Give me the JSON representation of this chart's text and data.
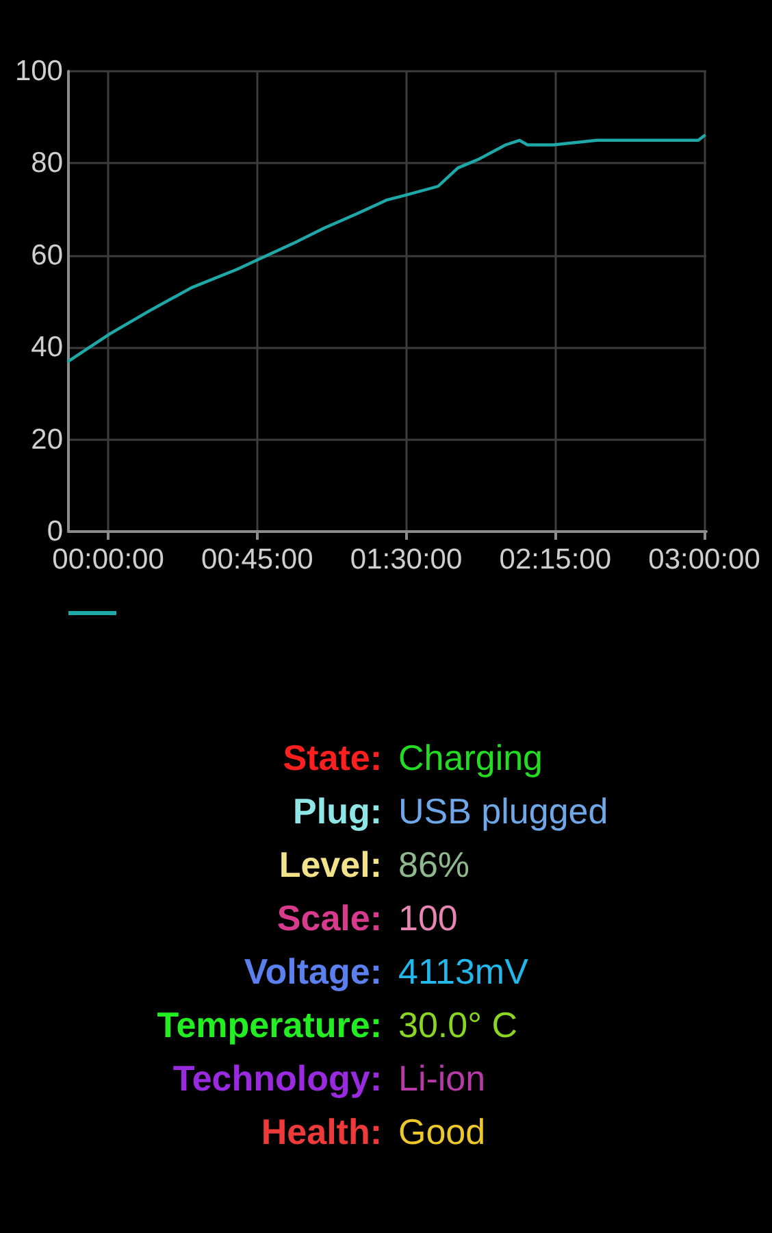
{
  "chart_data": [
    {
      "type": "line",
      "x": [
        -0.2,
        0.01,
        0.21,
        0.42,
        0.65,
        0.75,
        0.95,
        1.09,
        1.25,
        1.4,
        1.49,
        1.66,
        1.76,
        1.87,
        2.0,
        2.07,
        2.11,
        2.24,
        2.46,
        2.97,
        3.0
      ],
      "values": [
        37,
        43,
        48,
        53,
        57,
        59,
        63,
        66,
        69,
        72,
        73,
        75,
        79,
        81,
        84,
        85,
        84,
        84,
        85,
        85,
        86
      ],
      "color": "#1fa8a8",
      "marker": "none",
      "xlim": [
        -0.2,
        3.01
      ],
      "xticks": [
        {
          "value": 0,
          "label": "00:00:00"
        },
        {
          "value": 0.75,
          "label": "00:45:00"
        },
        {
          "value": 1.5,
          "label": "01:30:00"
        },
        {
          "value": 2.25,
          "label": "02:15:00"
        },
        {
          "value": 3,
          "label": "03:00:00"
        }
      ],
      "ylim": [
        0,
        100
      ],
      "yticks": [
        0,
        20,
        40,
        60,
        80,
        100
      ],
      "grid": true
    },
    {
      "type": "other",
      "annotations": [
        "State:",
        "Charging",
        "Plug:",
        "USB plugged",
        "Level:",
        "86%",
        "Scale:",
        "100",
        "Voltage:",
        "4113mV",
        "Temperature:",
        "30.0° C",
        "Technology:",
        "Li-ion",
        "Health:",
        "Good"
      ]
    }
  ]
}
